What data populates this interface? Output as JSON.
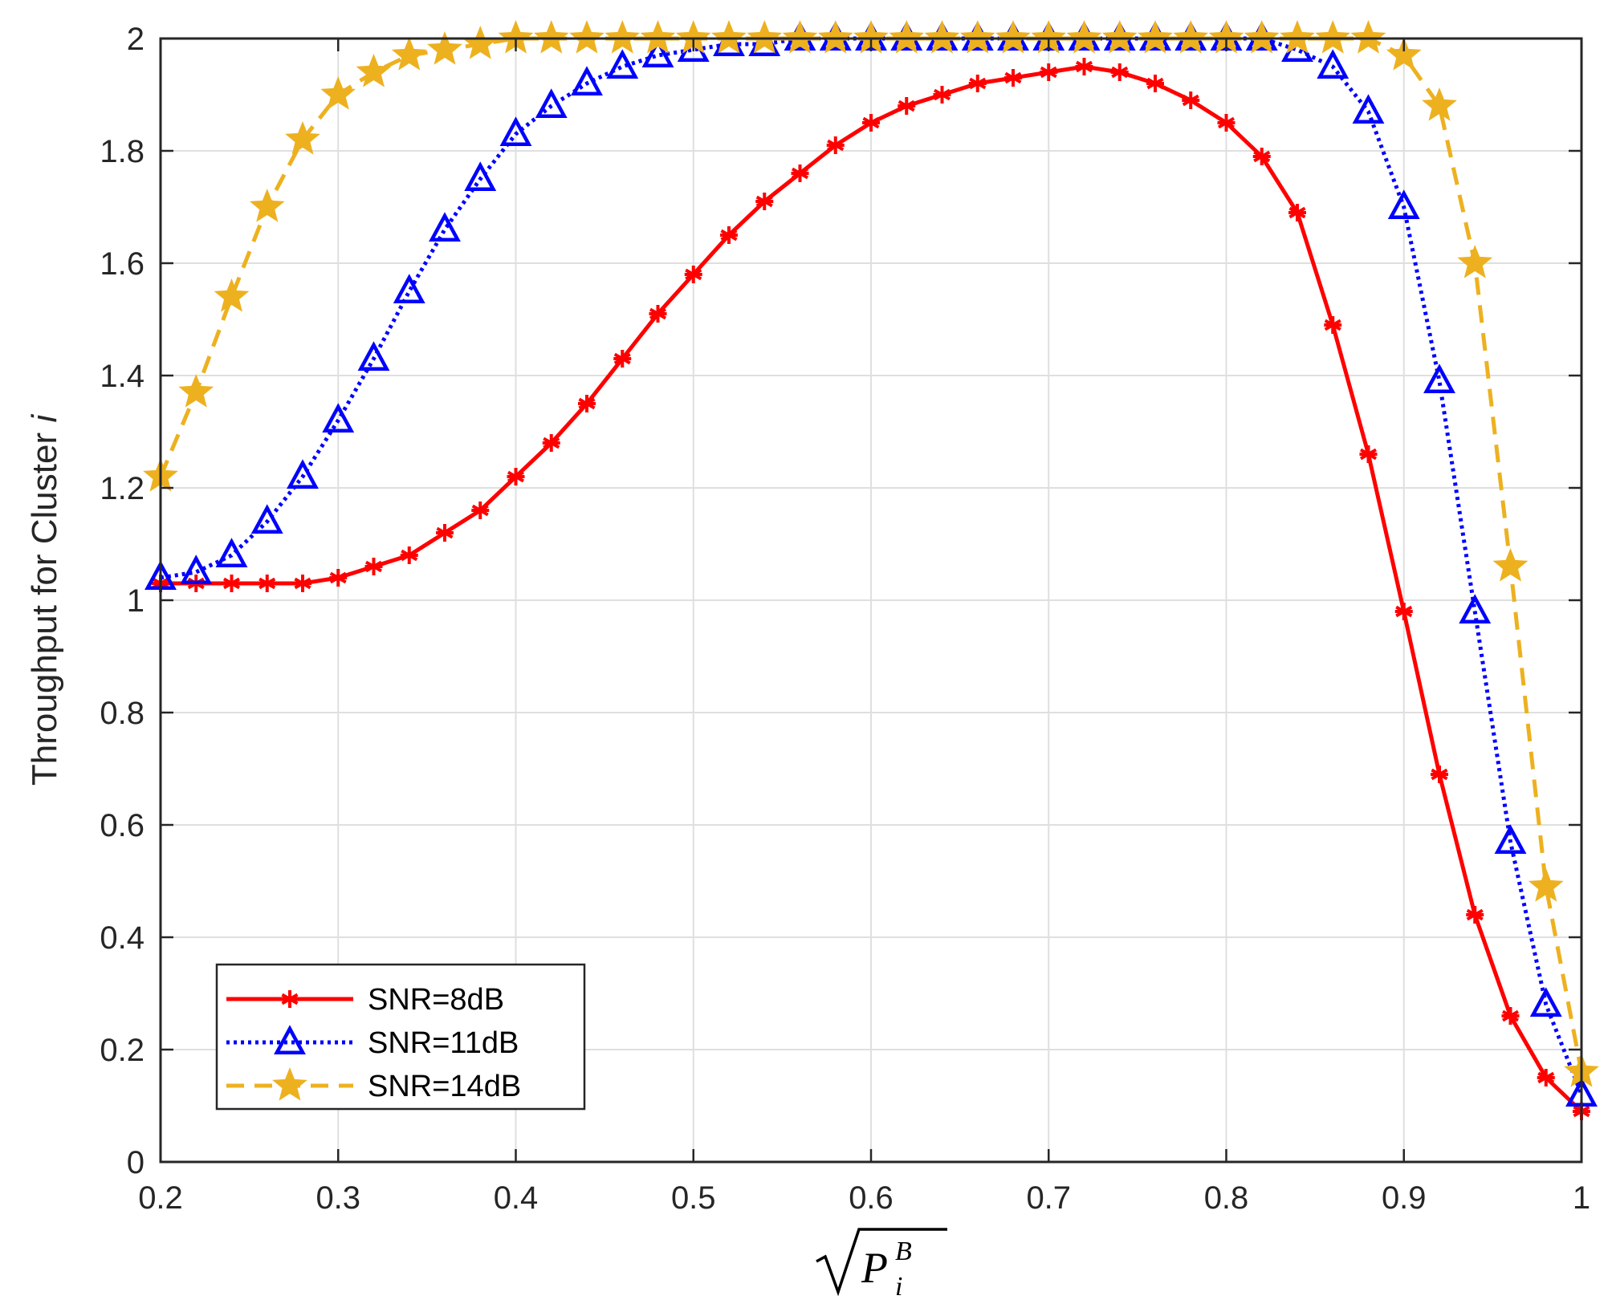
{
  "chart_data": {
    "type": "line",
    "title": "",
    "xlabel": "√P_i^B",
    "xlabel_parts": {
      "base": "P",
      "subscript": "i",
      "superscript": "B"
    },
    "ylabel": "Throughput for Cluster i",
    "ylabel_parts": {
      "text": "Throughput for Cluster ",
      "italic": "i"
    },
    "xlim": [
      0.2,
      1
    ],
    "ylim": [
      0,
      2
    ],
    "xticks": [
      "0.2",
      "0.3",
      "0.4",
      "0.5",
      "0.6",
      "0.7",
      "0.8",
      "0.9",
      "1"
    ],
    "yticks": [
      "0",
      "0.2",
      "0.4",
      "0.6",
      "0.8",
      "1",
      "1.2",
      "1.4",
      "1.6",
      "1.8",
      "2"
    ],
    "grid": true,
    "legend_position": "bottom-left",
    "x": [
      0.2,
      0.22,
      0.24,
      0.26,
      0.28,
      0.3,
      0.32,
      0.34,
      0.36,
      0.38,
      0.4,
      0.42,
      0.44,
      0.46,
      0.48,
      0.5,
      0.52,
      0.54,
      0.56,
      0.58,
      0.6,
      0.62,
      0.64,
      0.66,
      0.68,
      0.7,
      0.72,
      0.74,
      0.76,
      0.78,
      0.8,
      0.82,
      0.84,
      0.86,
      0.88,
      0.9,
      0.92,
      0.94,
      0.96,
      0.98,
      1.0
    ],
    "series": [
      {
        "name": "SNR=8dB",
        "color": "#ff0000",
        "line_style": "solid",
        "marker": "asterisk",
        "values": [
          1.03,
          1.03,
          1.03,
          1.03,
          1.03,
          1.04,
          1.06,
          1.08,
          1.12,
          1.16,
          1.22,
          1.28,
          1.35,
          1.43,
          1.51,
          1.58,
          1.65,
          1.71,
          1.76,
          1.81,
          1.85,
          1.88,
          1.9,
          1.92,
          1.93,
          1.94,
          1.95,
          1.94,
          1.92,
          1.89,
          1.85,
          1.79,
          1.69,
          1.49,
          1.26,
          0.98,
          0.69,
          0.44,
          0.26,
          0.15,
          0.09
        ]
      },
      {
        "name": "SNR=11dB",
        "color": "#0000ff",
        "line_style": "dotted",
        "marker": "triangle",
        "values": [
          1.04,
          1.05,
          1.08,
          1.14,
          1.22,
          1.32,
          1.43,
          1.55,
          1.66,
          1.75,
          1.83,
          1.88,
          1.92,
          1.95,
          1.97,
          1.98,
          1.99,
          1.99,
          2.0,
          2.0,
          2.0,
          2.0,
          2.0,
          2.0,
          2.0,
          2.0,
          2.0,
          2.0,
          2.0,
          2.0,
          2.0,
          2.0,
          1.98,
          1.95,
          1.87,
          1.7,
          1.39,
          0.98,
          0.57,
          0.28,
          0.12
        ]
      },
      {
        "name": "SNR=14dB",
        "color": "#edb120",
        "line_style": "dashed",
        "marker": "star",
        "values": [
          1.22,
          1.37,
          1.54,
          1.7,
          1.82,
          1.9,
          1.94,
          1.97,
          1.98,
          1.99,
          2.0,
          2.0,
          2.0,
          2.0,
          2.0,
          2.0,
          2.0,
          2.0,
          2.0,
          2.0,
          2.0,
          2.0,
          2.0,
          2.0,
          2.0,
          2.0,
          2.0,
          2.0,
          2.0,
          2.0,
          2.0,
          2.0,
          2.0,
          2.0,
          2.0,
          1.97,
          1.88,
          1.6,
          1.06,
          0.49,
          0.16
        ]
      }
    ]
  }
}
